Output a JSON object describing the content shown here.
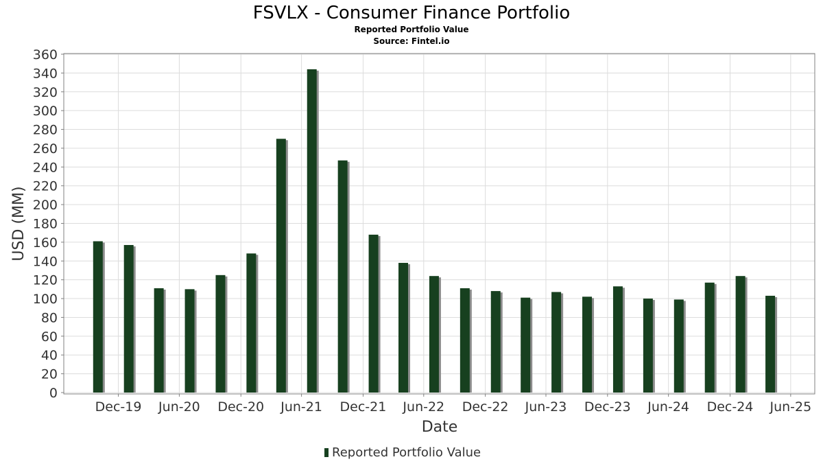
{
  "chart_data": {
    "type": "bar",
    "title": "FSVLX - Consumer Finance Portfolio",
    "subtitle_lines": [
      "Reported Portfolio Value",
      "Source: Fintel.io"
    ],
    "xlabel": "Date",
    "ylabel": "USD (MM)",
    "ylim": [
      0,
      360
    ],
    "y_ticks": [
      0,
      20,
      40,
      60,
      80,
      100,
      120,
      140,
      160,
      180,
      200,
      220,
      240,
      260,
      280,
      300,
      320,
      340,
      360
    ],
    "x_range": [
      "2019-07-21",
      "2025-09-10"
    ],
    "x_tick_labels": [
      {
        "date": "2019-12-31",
        "label": "Dec-19"
      },
      {
        "date": "2020-06-30",
        "label": "Jun-20"
      },
      {
        "date": "2020-12-31",
        "label": "Dec-20"
      },
      {
        "date": "2021-06-30",
        "label": "Jun-21"
      },
      {
        "date": "2021-12-31",
        "label": "Dec-21"
      },
      {
        "date": "2022-06-30",
        "label": "Jun-22"
      },
      {
        "date": "2022-12-31",
        "label": "Dec-22"
      },
      {
        "date": "2023-06-30",
        "label": "Jun-23"
      },
      {
        "date": "2023-12-31",
        "label": "Dec-23"
      },
      {
        "date": "2024-06-30",
        "label": "Jun-24"
      },
      {
        "date": "2024-12-31",
        "label": "Dec-24"
      },
      {
        "date": "2025-06-30",
        "label": "Jun-25"
      }
    ],
    "series": [
      {
        "name": "Reported Portfolio Value",
        "color": "#17401f",
        "x": [
          "2019-10-31",
          "2020-01-31",
          "2020-04-30",
          "2020-07-31",
          "2020-10-31",
          "2021-01-31",
          "2021-04-30",
          "2021-07-31",
          "2021-10-31",
          "2022-01-31",
          "2022-04-30",
          "2022-07-31",
          "2022-10-31",
          "2023-01-31",
          "2023-04-30",
          "2023-07-31",
          "2023-10-31",
          "2024-01-31",
          "2024-04-30",
          "2024-07-31",
          "2024-10-31",
          "2025-01-31",
          "2025-04-30"
        ],
        "values": [
          161,
          157,
          111,
          110,
          125,
          148,
          270,
          344,
          247,
          168,
          138,
          124,
          111,
          108,
          101,
          107,
          102,
          113,
          100,
          99,
          117,
          124,
          103
        ]
      }
    ],
    "grid": true,
    "legend_position": "bottom-center"
  },
  "colors": {
    "bar": "#17401f",
    "bar_shadow": "#8c8c8c",
    "grid": "#dcdcdc",
    "axis": "#808080"
  }
}
